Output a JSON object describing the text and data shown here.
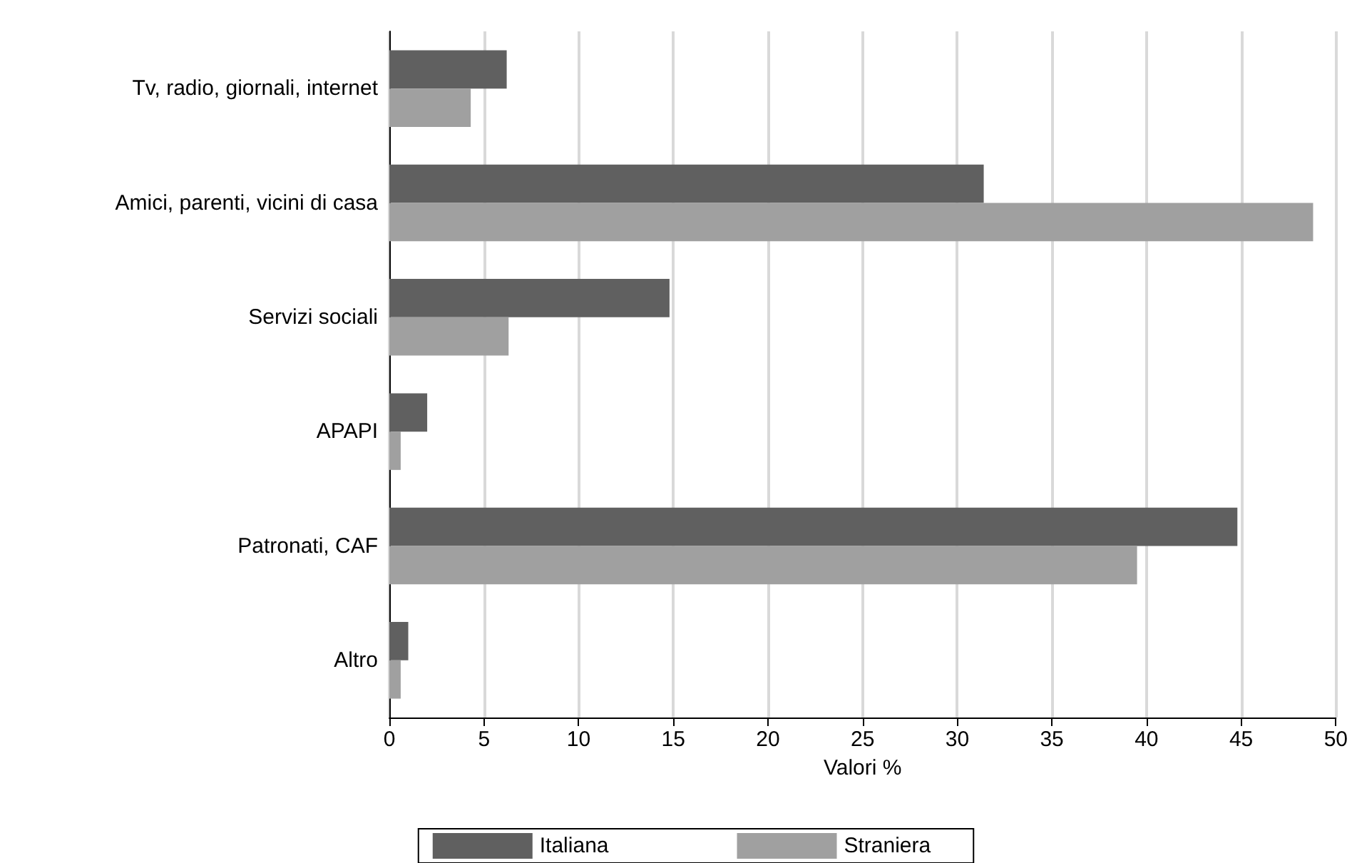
{
  "chart_data": {
    "type": "bar",
    "orientation": "horizontal",
    "xlabel": "Valori %",
    "categories": [
      "Tv, radio, giornali, internet",
      "Amici, parenti, vicini di casa",
      "Servizi sociali",
      "APAPI",
      "Patronati, CAF",
      "Altro"
    ],
    "series": [
      {
        "name": "Italiana",
        "color": "#606060",
        "values": [
          6.2,
          31.4,
          14.8,
          2.0,
          44.8,
          1.0
        ]
      },
      {
        "name": "Straniera",
        "color": "#a0a0a0",
        "values": [
          4.3,
          48.8,
          6.3,
          0.6,
          39.5,
          0.6
        ]
      }
    ],
    "xlim": [
      0,
      50
    ],
    "xticks": [
      0,
      5,
      10,
      15,
      20,
      25,
      30,
      35,
      40,
      45,
      50
    ],
    "grid": "x",
    "legend": "bottom"
  }
}
